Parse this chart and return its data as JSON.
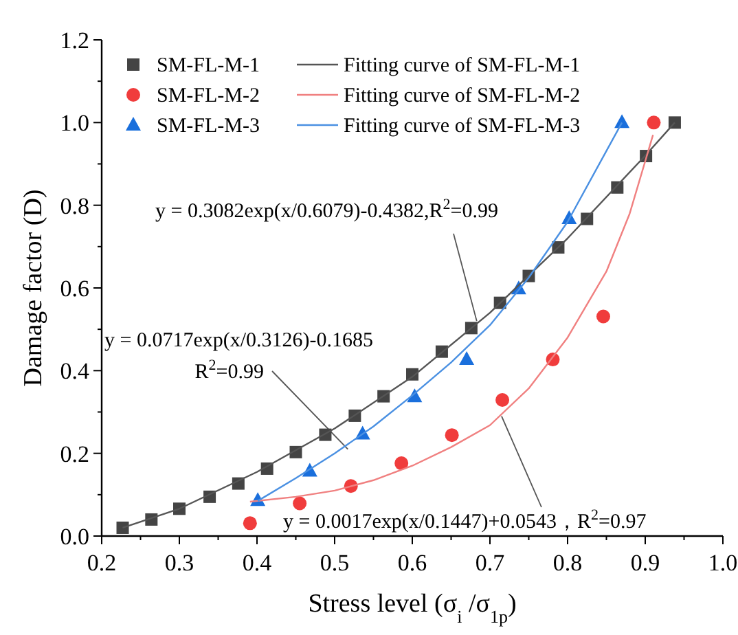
{
  "chart_data": {
    "type": "scatter",
    "xlabel": "Stress level (σ$_{i}$ /σ$_{1p}$)",
    "ylabel": "Damage factor (D)",
    "xlim": [
      0.2,
      1.0
    ],
    "ylim": [
      0.0,
      1.2
    ],
    "xticks": [
      {
        "value": 0.2,
        "label": "0.2"
      },
      {
        "value": 0.3,
        "label": "0.3"
      },
      {
        "value": 0.4,
        "label": "0.4"
      },
      {
        "value": 0.5,
        "label": "0.5"
      },
      {
        "value": 0.6,
        "label": "0.6"
      },
      {
        "value": 0.7,
        "label": "0.7"
      },
      {
        "value": 0.8,
        "label": "0.8"
      },
      {
        "value": 0.9,
        "label": "0.9"
      },
      {
        "value": 1.0,
        "label": "1.0"
      }
    ],
    "yticks": [
      {
        "value": 0.0,
        "label": "0.0"
      },
      {
        "value": 0.2,
        "label": "0.2"
      },
      {
        "value": 0.4,
        "label": "0.4"
      },
      {
        "value": 0.6,
        "label": "0.6"
      },
      {
        "value": 0.8,
        "label": "0.8"
      },
      {
        "value": 1.0,
        "label": "1.0"
      },
      {
        "value": 1.2,
        "label": "1.2"
      }
    ],
    "grid": false,
    "legend": "top left",
    "series": [
      {
        "name": "SM-FL-M-1",
        "type": "scatter",
        "marker": "square",
        "color": "#444444",
        "x": [
          0.227,
          0.264,
          0.3,
          0.339,
          0.376,
          0.413,
          0.45,
          0.488,
          0.526,
          0.563,
          0.6,
          0.638,
          0.676,
          0.713,
          0.75,
          0.788,
          0.825,
          0.864,
          0.901,
          0.938
        ],
        "values": [
          0.02,
          0.04,
          0.066,
          0.095,
          0.127,
          0.163,
          0.203,
          0.245,
          0.291,
          0.338,
          0.391,
          0.446,
          0.503,
          0.564,
          0.629,
          0.698,
          0.767,
          0.843,
          0.919,
          1.0
        ]
      },
      {
        "name": "SM-FL-M-2",
        "type": "scatter",
        "marker": "circle",
        "color": "#f03c3c",
        "x": [
          0.391,
          0.455,
          0.521,
          0.586,
          0.651,
          0.716,
          0.781,
          0.846,
          0.911
        ],
        "values": [
          0.031,
          0.079,
          0.121,
          0.176,
          0.244,
          0.329,
          0.427,
          0.531,
          1.0
        ]
      },
      {
        "name": "SM-FL-M-3",
        "type": "scatter",
        "marker": "triangle",
        "color": "#1a6fdc",
        "x": [
          0.401,
          0.468,
          0.536,
          0.603,
          0.67,
          0.737,
          0.802,
          0.87
        ],
        "values": [
          0.086,
          0.157,
          0.247,
          0.337,
          0.427,
          0.598,
          0.768,
          1.0
        ]
      },
      {
        "name": "Fitting curve of SM-FL-M-1",
        "type": "line",
        "line_style": "solid",
        "color": "#555555",
        "x": [
          0.227,
          0.3,
          0.4,
          0.5,
          0.6,
          0.7,
          0.8,
          0.9,
          0.938
        ],
        "values": [
          0.02,
          0.066,
          0.155,
          0.26,
          0.385,
          0.54,
          0.72,
          0.92,
          1.0
        ]
      },
      {
        "name": "Fitting curve of SM-FL-M-2",
        "type": "line",
        "line_style": "solid",
        "color": "#f08080",
        "x": [
          0.391,
          0.45,
          0.5,
          0.55,
          0.6,
          0.65,
          0.7,
          0.75,
          0.8,
          0.85,
          0.88,
          0.91
        ],
        "values": [
          0.083,
          0.095,
          0.11,
          0.135,
          0.17,
          0.215,
          0.268,
          0.357,
          0.48,
          0.64,
          0.78,
          0.97
        ]
      },
      {
        "name": "Fitting curve of SM-FL-M-3",
        "type": "line",
        "line_style": "solid",
        "color": "#4a90e2",
        "x": [
          0.401,
          0.45,
          0.5,
          0.55,
          0.6,
          0.65,
          0.7,
          0.75,
          0.8,
          0.87
        ],
        "values": [
          0.085,
          0.14,
          0.2,
          0.265,
          0.34,
          0.42,
          0.51,
          0.625,
          0.76,
          1.0
        ]
      }
    ],
    "annotations": [
      {
        "text": "y = 0.3082exp(x/0.6079)-0.4382,R$^{2}$=0.99",
        "x": 0.683,
        "y": 0.52
      },
      {
        "text": "y = 0.0717exp(x/0.3126)-0.1685\nR$^{2}$=0.99",
        "x": 0.517,
        "y": 0.21
      },
      {
        "text": "y = 0.0017exp(x/0.1447)+0.0543，R$^{2}$=0.97",
        "x": 0.715,
        "y": 0.29
      }
    ]
  }
}
